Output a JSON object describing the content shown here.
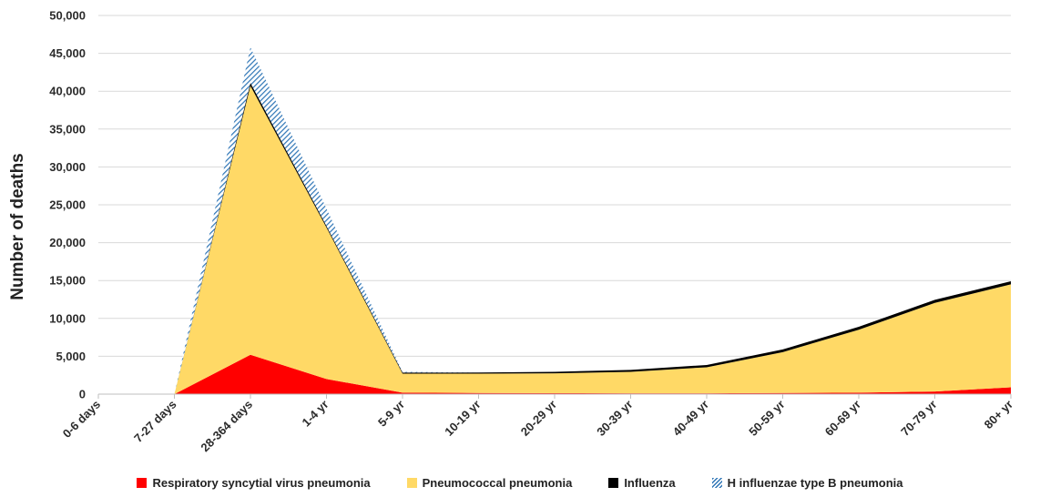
{
  "chart_data": {
    "type": "area",
    "stacked": true,
    "ylabel": "Number of deaths",
    "xlabel": "",
    "ylim": [
      0,
      50000
    ],
    "y_ticks": [
      "0",
      "5,000",
      "10,000",
      "15,000",
      "20,000",
      "25,000",
      "30,000",
      "35,000",
      "40,000",
      "45,000",
      "50,000"
    ],
    "grid": true,
    "legend_position": "bottom",
    "categories": [
      "0-6 days",
      "7-27 days",
      "28-364 days",
      "1-4 yr",
      "5-9 yr",
      "10-19 yr",
      "20-29 yr",
      "30-39 yr",
      "40-49 yr",
      "50-59 yr",
      "60-69 yr",
      "70-79 yr",
      "80+ yr"
    ],
    "series": [
      {
        "name": "Respiratory syncytial virus pneumonia",
        "color": "#ff0000",
        "values": [
          0,
          0,
          5200,
          2000,
          200,
          150,
          120,
          100,
          100,
          150,
          200,
          350,
          900
        ]
      },
      {
        "name": "Pneumococcal pneumonia",
        "color": "#ffd966",
        "values": [
          0,
          0,
          35500,
          20000,
          2500,
          2550,
          2630,
          2850,
          3450,
          5400,
          8300,
          11700,
          13600
        ]
      },
      {
        "name": "Influenza",
        "color": "#000000",
        "values": [
          0,
          0,
          400,
          200,
          150,
          150,
          200,
          250,
          300,
          350,
          400,
          400,
          400
        ]
      },
      {
        "name": "H influenzae type B pneumonia",
        "color": "#2e75b6",
        "values": [
          0,
          0,
          4700,
          2300,
          100,
          0,
          0,
          0,
          0,
          0,
          0,
          0,
          0
        ]
      }
    ]
  }
}
